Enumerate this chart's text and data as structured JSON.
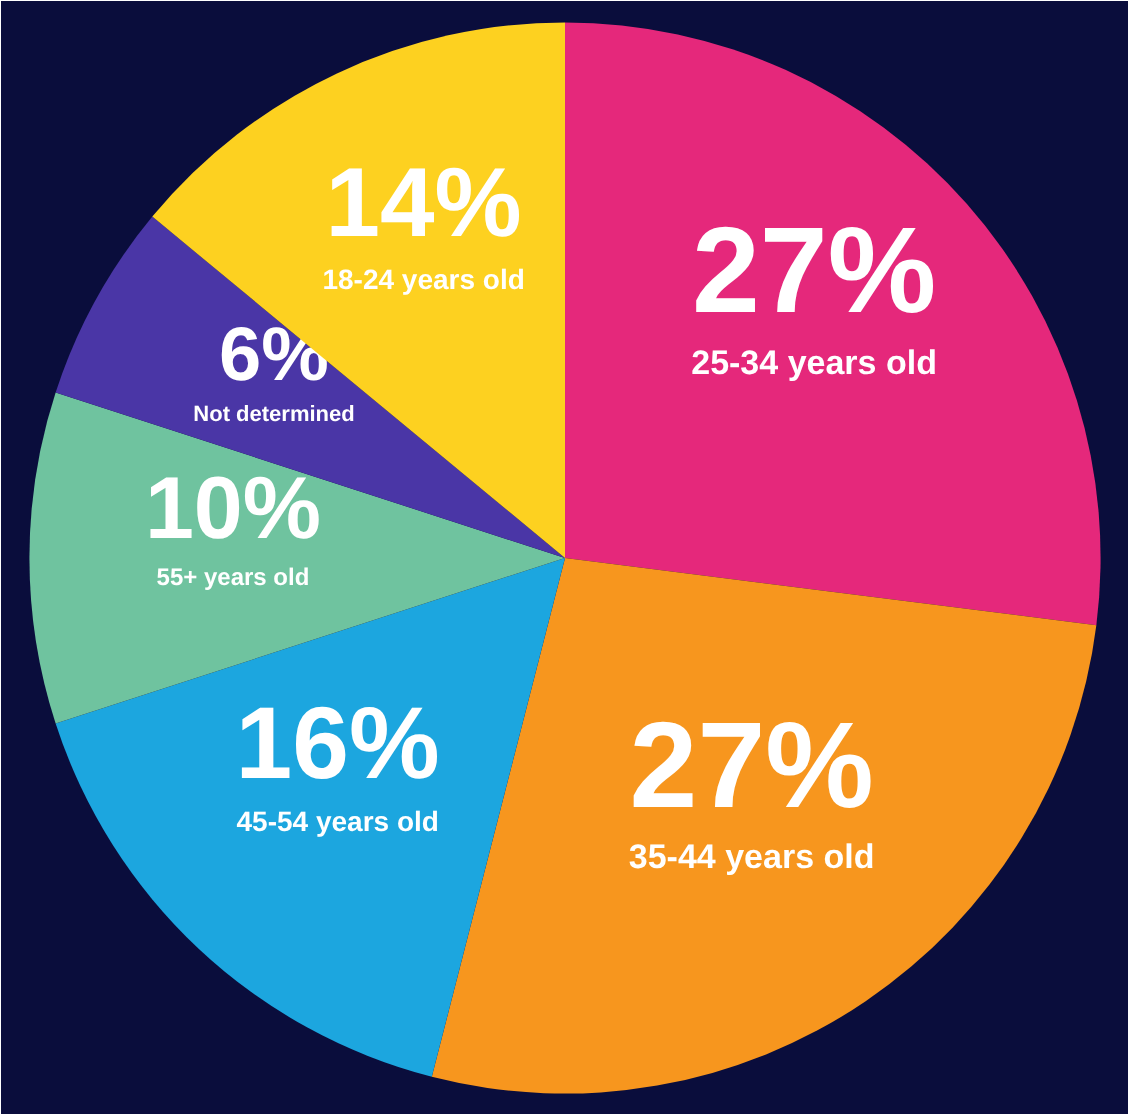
{
  "chart_data": {
    "type": "pie",
    "categories": [
      "25-34 years old",
      "35-44 years old",
      "45-54 years old",
      "55+ years old",
      "Not determined",
      "18-24 years old"
    ],
    "values": [
      27,
      27,
      16,
      10,
      6,
      14
    ],
    "value_labels": [
      "27%",
      "27%",
      "16%",
      "10%",
      "6%",
      "14%"
    ],
    "colors": [
      "#e5287b",
      "#f7961e",
      "#1ca6df",
      "#6fc39f",
      "#4a36a6",
      "#fdd120"
    ]
  }
}
